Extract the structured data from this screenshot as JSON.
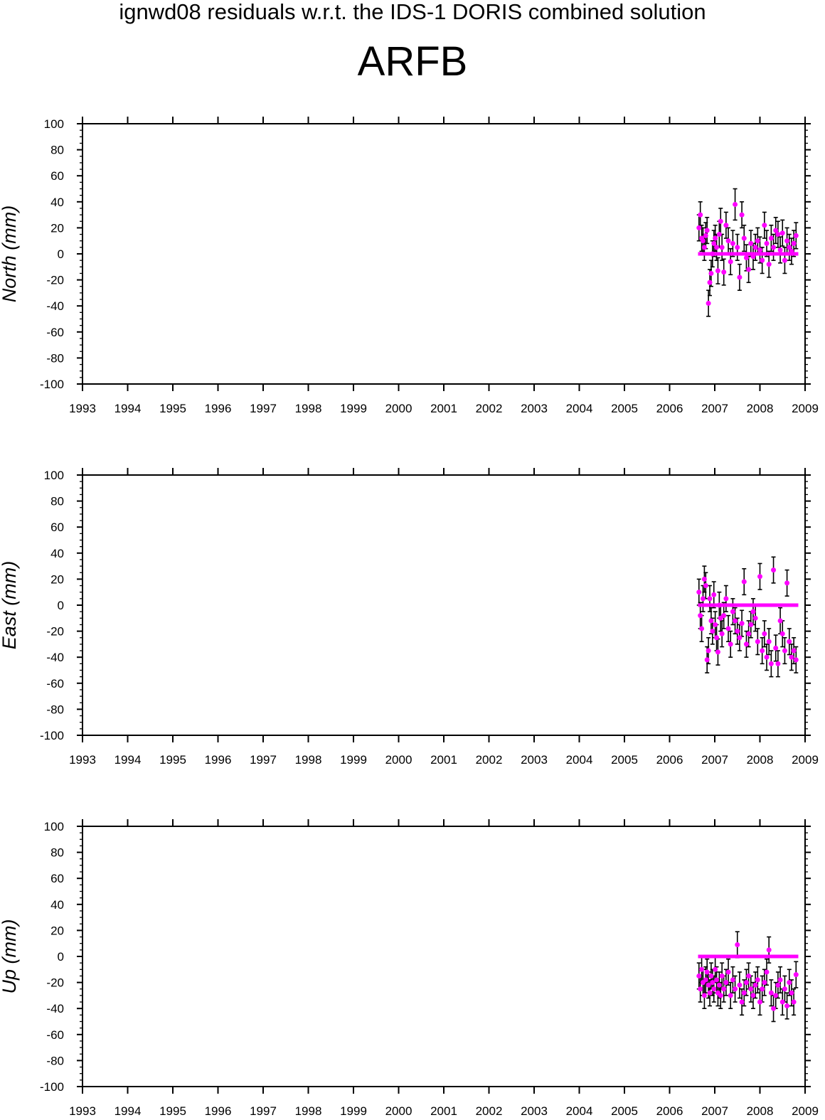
{
  "header": {
    "title": "ignwd08 residuals w.r.t. the IDS-1 DORIS combined solution",
    "station": "ARFB"
  },
  "colors": {
    "points": "#ff00ff",
    "errorbars": "#000000",
    "axes": "#000000"
  },
  "chart_data": [
    {
      "type": "scatter",
      "ylabel": "North (mm)",
      "xlim": [
        1993,
        2009
      ],
      "ylim": [
        -100,
        100
      ],
      "xticks": [
        "1993",
        "1994",
        "1995",
        "1996",
        "1997",
        "1998",
        "1999",
        "2000",
        "2001",
        "2002",
        "2003",
        "2004",
        "2005",
        "2006",
        "2007",
        "2008",
        "2009"
      ],
      "yticks": [
        "100",
        "80",
        "60",
        "40",
        "20",
        "0",
        "-20",
        "-40",
        "-60",
        "-80",
        "-100"
      ],
      "reference_line": {
        "y": 0,
        "x": [
          2006.63,
          2008.85
        ]
      },
      "x": [
        2006.65,
        2006.68,
        2006.71,
        2006.74,
        2006.77,
        2006.8,
        2006.83,
        2006.86,
        2006.89,
        2006.92,
        2006.95,
        2006.98,
        2007.01,
        2007.04,
        2007.07,
        2007.1,
        2007.13,
        2007.16,
        2007.2,
        2007.25,
        2007.3,
        2007.35,
        2007.4,
        2007.45,
        2007.5,
        2007.55,
        2007.6,
        2007.65,
        2007.7,
        2007.75,
        2007.8,
        2007.85,
        2007.9,
        2007.95,
        2008.0,
        2008.05,
        2008.1,
        2008.15,
        2008.2,
        2008.25,
        2008.3,
        2008.35,
        2008.4,
        2008.45,
        2008.5,
        2008.55,
        2008.6,
        2008.65,
        2008.7,
        2008.75,
        2008.8
      ],
      "y": [
        20,
        30,
        12,
        10,
        5,
        14,
        18,
        -38,
        -22,
        -15,
        0,
        8,
        12,
        5,
        -13,
        15,
        25,
        5,
        -14,
        22,
        10,
        -6,
        8,
        38,
        5,
        -18,
        30,
        12,
        -3,
        -12,
        8,
        -2,
        5,
        10,
        3,
        -5,
        22,
        8,
        -8,
        12,
        5,
        18,
        15,
        3,
        16,
        -5,
        10,
        5,
        2,
        8,
        14
      ],
      "err": [
        10,
        10,
        10,
        10,
        10,
        10,
        10,
        10,
        10,
        10,
        10,
        10,
        10,
        10,
        10,
        10,
        10,
        10,
        10,
        10,
        10,
        10,
        10,
        12,
        10,
        10,
        10,
        10,
        10,
        10,
        10,
        10,
        10,
        10,
        10,
        10,
        10,
        10,
        10,
        10,
        10,
        10,
        10,
        10,
        10,
        10,
        10,
        10,
        10,
        10,
        10
      ]
    },
    {
      "type": "scatter",
      "ylabel": "East (mm)",
      "xlim": [
        1993,
        2009
      ],
      "ylim": [
        -100,
        100
      ],
      "xticks": [
        "1993",
        "1994",
        "1995",
        "1996",
        "1997",
        "1998",
        "1999",
        "2000",
        "2001",
        "2002",
        "2003",
        "2004",
        "2005",
        "2006",
        "2007",
        "2008",
        "2009"
      ],
      "yticks": [
        "100",
        "80",
        "60",
        "40",
        "20",
        "0",
        "-20",
        "-40",
        "-60",
        "-80",
        "-100"
      ],
      "reference_line": {
        "y": 0,
        "x": [
          2006.63,
          2008.85
        ]
      },
      "x": [
        2006.65,
        2006.68,
        2006.71,
        2006.74,
        2006.77,
        2006.8,
        2006.83,
        2006.86,
        2006.89,
        2006.92,
        2006.95,
        2006.98,
        2007.01,
        2007.04,
        2007.07,
        2007.1,
        2007.13,
        2007.16,
        2007.2,
        2007.25,
        2007.3,
        2007.35,
        2007.4,
        2007.45,
        2007.5,
        2007.55,
        2007.6,
        2007.65,
        2007.7,
        2007.75,
        2007.8,
        2007.85,
        2007.9,
        2007.95,
        2008.0,
        2008.05,
        2008.1,
        2008.15,
        2008.2,
        2008.25,
        2008.3,
        2008.35,
        2008.4,
        2008.45,
        2008.5,
        2008.55,
        2008.6,
        2008.65,
        2008.7,
        2008.75,
        2008.8
      ],
      "y": [
        10,
        -8,
        -18,
        5,
        20,
        15,
        -42,
        -35,
        5,
        -12,
        -20,
        8,
        -15,
        -25,
        -36,
        0,
        -10,
        -22,
        -8,
        5,
        -18,
        -30,
        -5,
        -12,
        -20,
        -25,
        -14,
        18,
        -30,
        -22,
        -15,
        -5,
        -10,
        -28,
        22,
        -35,
        -22,
        -40,
        -28,
        -45,
        27,
        -33,
        -45,
        -12,
        -22,
        -35,
        17,
        -28,
        -40,
        -35,
        -42
      ],
      "err": [
        10,
        10,
        10,
        10,
        10,
        10,
        10,
        10,
        10,
        10,
        10,
        10,
        10,
        10,
        10,
        10,
        10,
        10,
        10,
        10,
        10,
        10,
        10,
        10,
        10,
        10,
        10,
        10,
        10,
        10,
        10,
        10,
        10,
        10,
        10,
        10,
        10,
        10,
        10,
        10,
        10,
        10,
        10,
        10,
        10,
        10,
        10,
        10,
        10,
        10,
        10
      ]
    },
    {
      "type": "scatter",
      "ylabel": "Up (mm)",
      "xlim": [
        1993,
        2009
      ],
      "ylim": [
        -100,
        100
      ],
      "xticks": [
        "1993",
        "1994",
        "1995",
        "1996",
        "1997",
        "1998",
        "1999",
        "2000",
        "2001",
        "2002",
        "2003",
        "2004",
        "2005",
        "2006",
        "2007",
        "2008",
        "2009"
      ],
      "yticks": [
        "100",
        "80",
        "60",
        "40",
        "20",
        "0",
        "-20",
        "-40",
        "-60",
        "-80",
        "-100"
      ],
      "reference_line": {
        "y": 0,
        "x": [
          2006.63,
          2008.85
        ]
      },
      "x": [
        2006.65,
        2006.68,
        2006.71,
        2006.74,
        2006.77,
        2006.8,
        2006.83,
        2006.86,
        2006.89,
        2006.92,
        2006.95,
        2006.98,
        2007.01,
        2007.04,
        2007.07,
        2007.1,
        2007.13,
        2007.16,
        2007.2,
        2007.25,
        2007.3,
        2007.35,
        2007.4,
        2007.45,
        2007.5,
        2007.55,
        2007.6,
        2007.65,
        2007.7,
        2007.75,
        2007.8,
        2007.85,
        2007.9,
        2007.95,
        2008.0,
        2008.05,
        2008.1,
        2008.15,
        2008.2,
        2008.25,
        2008.3,
        2008.35,
        2008.4,
        2008.45,
        2008.5,
        2008.55,
        2008.6,
        2008.65,
        2008.7,
        2008.75,
        2008.8
      ],
      "y": [
        -15,
        -25,
        -10,
        -20,
        -30,
        -18,
        -12,
        -22,
        -28,
        -15,
        -20,
        -25,
        -10,
        -18,
        -28,
        -22,
        -30,
        -15,
        -25,
        -20,
        -12,
        -30,
        -18,
        -25,
        9,
        -22,
        -35,
        -28,
        -20,
        -15,
        -25,
        -30,
        -22,
        -18,
        -35,
        -25,
        -20,
        -12,
        5,
        -28,
        -40,
        -30,
        -22,
        -18,
        -35,
        -25,
        -38,
        -20,
        -28,
        -35,
        -14
      ],
      "err": [
        10,
        10,
        10,
        10,
        10,
        10,
        10,
        10,
        10,
        10,
        10,
        10,
        10,
        10,
        10,
        10,
        10,
        10,
        10,
        10,
        10,
        10,
        10,
        10,
        10,
        10,
        10,
        10,
        10,
        10,
        10,
        10,
        10,
        10,
        10,
        10,
        10,
        10,
        10,
        10,
        10,
        10,
        10,
        10,
        10,
        10,
        10,
        10,
        10,
        10,
        10
      ]
    }
  ]
}
